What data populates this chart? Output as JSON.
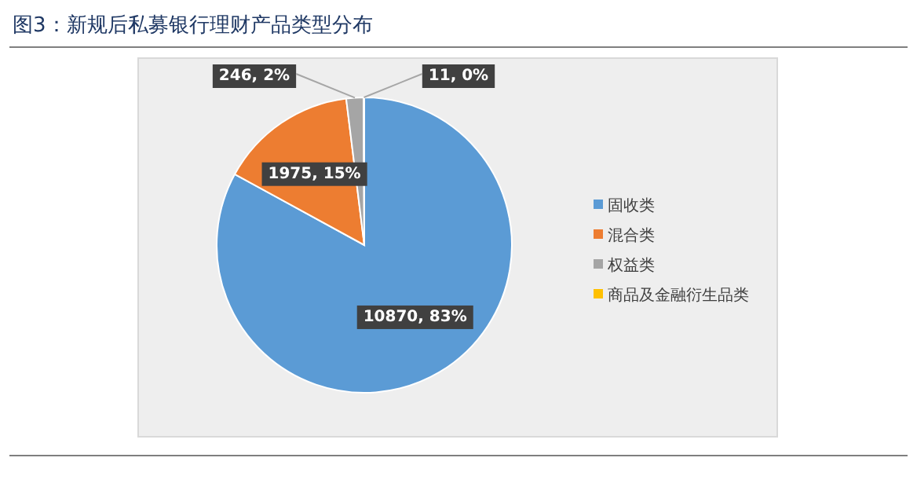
{
  "chart_data": {
    "type": "pie",
    "title": "图3：新规后私募银行理财产品类型分布",
    "categories": [
      "固收类",
      "混合类",
      "权益类",
      "商品及金融衍生品类"
    ],
    "values": [
      10870,
      1975,
      246,
      11
    ],
    "colors": [
      "#5b9bd5",
      "#ed7d31",
      "#a5a5a5",
      "#ffc000"
    ],
    "value_labels": [
      "10870, 83%",
      "1975, 15%",
      "246, 2%",
      "11, 0%"
    ],
    "legend": "right"
  }
}
